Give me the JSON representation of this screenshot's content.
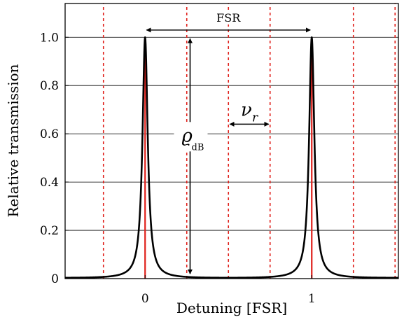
{
  "chart_data": {
    "type": "line",
    "xlabel": "Detuning [FSR]",
    "ylabel": "Relative transmission",
    "xlim": [
      -0.48,
      1.52
    ],
    "ylim": [
      0,
      1.14
    ],
    "x_ticks": [
      0,
      1
    ],
    "x_tick_labels": [
      "0",
      "1"
    ],
    "y_ticks": [
      0,
      0.2,
      0.4,
      0.6,
      0.8,
      1.0
    ],
    "y_tick_labels": [
      "0",
      "0.2",
      "0.4",
      "0.6",
      "0.8",
      "1.0"
    ],
    "grid": "horizontal",
    "series": [
      {
        "kind": "airy-transmission",
        "finesse_coefficient": 280,
        "x_range": [
          -0.48,
          1.52
        ],
        "color": "#000000",
        "peaks_at": [
          0,
          1
        ],
        "peak_value": 1.0,
        "minimum_value": 0.014
      }
    ],
    "mode_lines": {
      "positions": [
        -0.5,
        -0.25,
        0,
        0.25,
        0.5,
        0.75,
        1,
        1.25,
        1.5
      ],
      "solid_at": [
        0,
        1
      ],
      "color": "#e0201b"
    },
    "annotations": {
      "fsr": {
        "label": "FSR",
        "from": 0,
        "to": 1,
        "y": 1.03
      },
      "contrast": {
        "label": "ϱ",
        "subscript": "dB",
        "x": 0.27,
        "from": 0.014,
        "to": 1.0
      },
      "nu_r": {
        "label": "ν",
        "subscript": "r",
        "from": 0.5,
        "to": 0.75,
        "y": 0.64
      }
    }
  }
}
